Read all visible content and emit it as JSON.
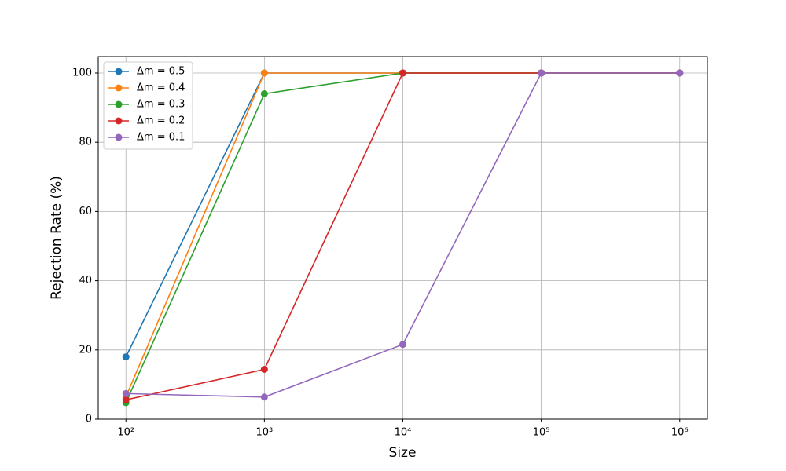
{
  "chart_data": {
    "type": "line",
    "xlabel": "Size",
    "ylabel": "Rejection Rate (%)",
    "x": [
      100,
      1000,
      10000,
      100000,
      1000000
    ],
    "xscale": "log",
    "xlim": [
      63.1,
      1584893
    ],
    "ylim": [
      0,
      104.76
    ],
    "xticks": [
      {
        "value": 100,
        "label": "10²"
      },
      {
        "value": 1000,
        "label": "10³"
      },
      {
        "value": 10000,
        "label": "10⁴"
      },
      {
        "value": 100000,
        "label": "10⁵"
      },
      {
        "value": 1000000,
        "label": "10⁶"
      }
    ],
    "yticks": [
      0,
      20,
      40,
      60,
      80,
      100
    ],
    "grid": true,
    "legend": "upper left",
    "series": [
      {
        "name": "Δm = 0.5",
        "color": "#1f77b4",
        "values": [
          18,
          100,
          100,
          100,
          100
        ]
      },
      {
        "name": "Δm = 0.4",
        "color": "#ff7f0e",
        "values": [
          6.5,
          100,
          100,
          100,
          100
        ]
      },
      {
        "name": "Δm = 0.3",
        "color": "#2ca02c",
        "values": [
          4.8,
          94,
          100,
          100,
          100
        ]
      },
      {
        "name": "Δm = 0.2",
        "color": "#d62728",
        "values": [
          5.6,
          14.4,
          100,
          100,
          100
        ]
      },
      {
        "name": "Δm = 0.1",
        "color": "#9467bd",
        "values": [
          7.4,
          6.4,
          21.6,
          100,
          100
        ]
      }
    ]
  }
}
